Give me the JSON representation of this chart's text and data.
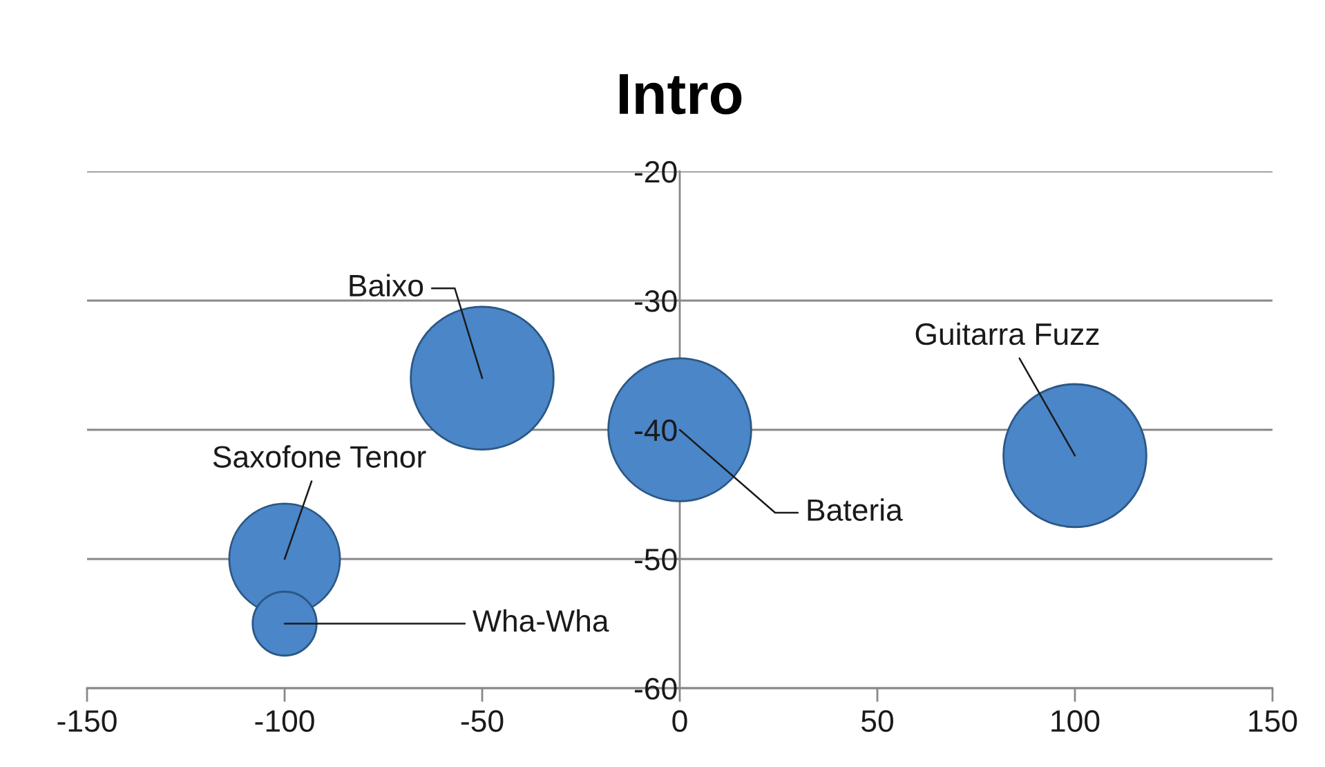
{
  "chart_data": {
    "type": "bubble",
    "title": "Intro",
    "series": [
      {
        "name": "Saxofone Tenor",
        "x": [
          -100
        ],
        "values": [
          -50
        ],
        "sizes": [
          0.6
        ],
        "color": "#4a86c8"
      },
      {
        "name": "Wha-Wha",
        "x": [
          -100
        ],
        "values": [
          -55
        ],
        "sizes": [
          0.2
        ],
        "color": "#4a86c8"
      },
      {
        "name": "Baixo",
        "x": [
          -50
        ],
        "values": [
          -36
        ],
        "sizes": [
          1
        ],
        "color": "#4a86c8"
      },
      {
        "name": "Bateria",
        "x": [
          0
        ],
        "values": [
          -40
        ],
        "sizes": [
          1
        ],
        "color": "#4a86c8"
      },
      {
        "name": "Guitarra Fuzz",
        "x": [
          100
        ],
        "values": [
          -42
        ],
        "sizes": [
          1
        ],
        "color": "#4a86c8"
      }
    ],
    "xlim": [
      -150,
      150
    ],
    "xticks": [
      -150,
      -100,
      -50,
      0,
      50,
      100,
      150
    ],
    "ylim": [
      -60,
      -20
    ],
    "yticks": [
      -60,
      -50,
      -40,
      -30,
      -20
    ],
    "grid": "y"
  }
}
